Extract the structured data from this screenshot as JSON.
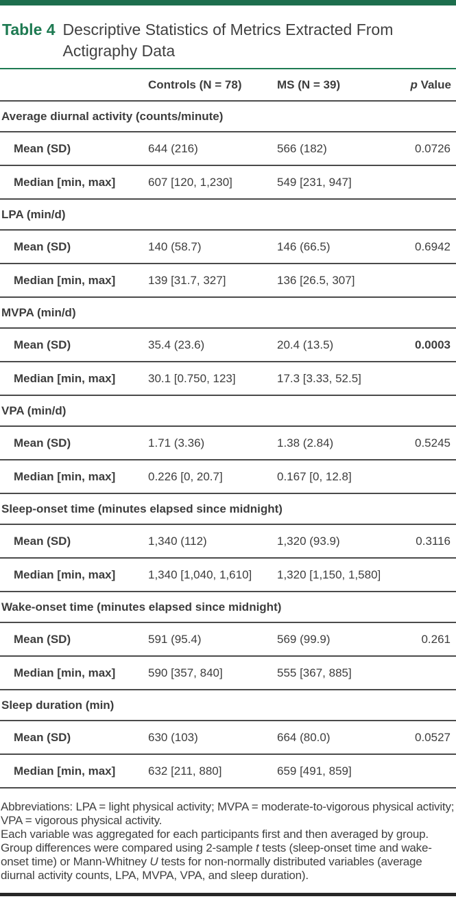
{
  "caption": {
    "label": "Table 4",
    "title": "Descriptive Statistics of Metrics Extracted From Actigraphy Data"
  },
  "columns": {
    "row_header": "",
    "controls": "Controls (N = 78)",
    "ms": "MS (N = 39)",
    "p_italic": "p",
    "p_text": "Value"
  },
  "sections": [
    {
      "title": "Average diurnal activity (counts/minute)",
      "rows": [
        {
          "label": "Mean (SD)",
          "controls": "644 (216)",
          "ms": "566 (182)",
          "p": "0.0726",
          "p_strong": false
        },
        {
          "label": "Median [min, max]",
          "controls": "607 [120, 1,230]",
          "ms": "549 [231, 947]",
          "p": "",
          "p_strong": false
        }
      ]
    },
    {
      "title": "LPA (min/d)",
      "rows": [
        {
          "label": "Mean (SD)",
          "controls": "140 (58.7)",
          "ms": "146 (66.5)",
          "p": "0.6942",
          "p_strong": false
        },
        {
          "label": "Median [min, max]",
          "controls": "139 [31.7, 327]",
          "ms": "136 [26.5, 307]",
          "p": "",
          "p_strong": false
        }
      ]
    },
    {
      "title": "MVPA (min/d)",
      "rows": [
        {
          "label": "Mean (SD)",
          "controls": "35.4 (23.6)",
          "ms": "20.4 (13.5)",
          "p": "0.0003",
          "p_strong": true
        },
        {
          "label": "Median [min, max]",
          "controls": "30.1 [0.750, 123]",
          "ms": "17.3 [3.33, 52.5]",
          "p": "",
          "p_strong": false
        }
      ]
    },
    {
      "title": "VPA (min/d)",
      "rows": [
        {
          "label": "Mean (SD)",
          "controls": "1.71 (3.36)",
          "ms": "1.38 (2.84)",
          "p": "0.5245",
          "p_strong": false
        },
        {
          "label": "Median [min, max]",
          "controls": "0.226 [0, 20.7]",
          "ms": "0.167 [0, 12.8]",
          "p": "",
          "p_strong": false
        }
      ]
    },
    {
      "title": "Sleep-onset time (minutes elapsed since midnight)",
      "rows": [
        {
          "label": "Mean (SD)",
          "controls": "1,340 (112)",
          "ms": "1,320 (93.9)",
          "p": "0.3116",
          "p_strong": false
        },
        {
          "label": "Median [min, max]",
          "controls": "1,340 [1,040, 1,610]",
          "ms": "1,320 [1,150, 1,580]",
          "p": "",
          "p_strong": false
        }
      ]
    },
    {
      "title": "Wake-onset time (minutes elapsed since midnight)",
      "rows": [
        {
          "label": "Mean (SD)",
          "controls": "591 (95.4)",
          "ms": "569 (99.9)",
          "p": "0.261",
          "p_strong": false
        },
        {
          "label": "Median [min, max]",
          "controls": "590 [357, 840]",
          "ms": "555 [367, 885]",
          "p": "",
          "p_strong": false
        }
      ]
    },
    {
      "title": "Sleep duration (min)",
      "rows": [
        {
          "label": "Mean (SD)",
          "controls": "630 (103)",
          "ms": "664 (80.0)",
          "p": "0.0527",
          "p_strong": false
        },
        {
          "label": "Median [min, max]",
          "controls": "632 [211, 880]",
          "ms": "659 [491, 859]",
          "p": "",
          "p_strong": false
        }
      ]
    }
  ],
  "footnotes": {
    "abbreviations": "Abbreviations: LPA = light physical activity; MVPA = moderate-to-vigorous physical activity; VPA = vigorous physical activity.",
    "note_1": "Each variable was aggregated for each participants first and then averaged by group. Group differences were compared using 2-sample ",
    "note_t": "t",
    "note_2": " tests (sleep-onset time and wake-onset time) or Mann-Whitney ",
    "note_u": "U",
    "note_3": " tests for non-normally distributed variables (average diurnal activity counts, LPA, MVPA, VPA, and sleep duration)."
  },
  "colors": {
    "accent_green_bar": "#1d6e4d",
    "accent_green_text": "#1e7a52",
    "rule_dark": "#4a4a4a",
    "body_text": "#3d3d3d",
    "bottom_bar": "#272727"
  }
}
